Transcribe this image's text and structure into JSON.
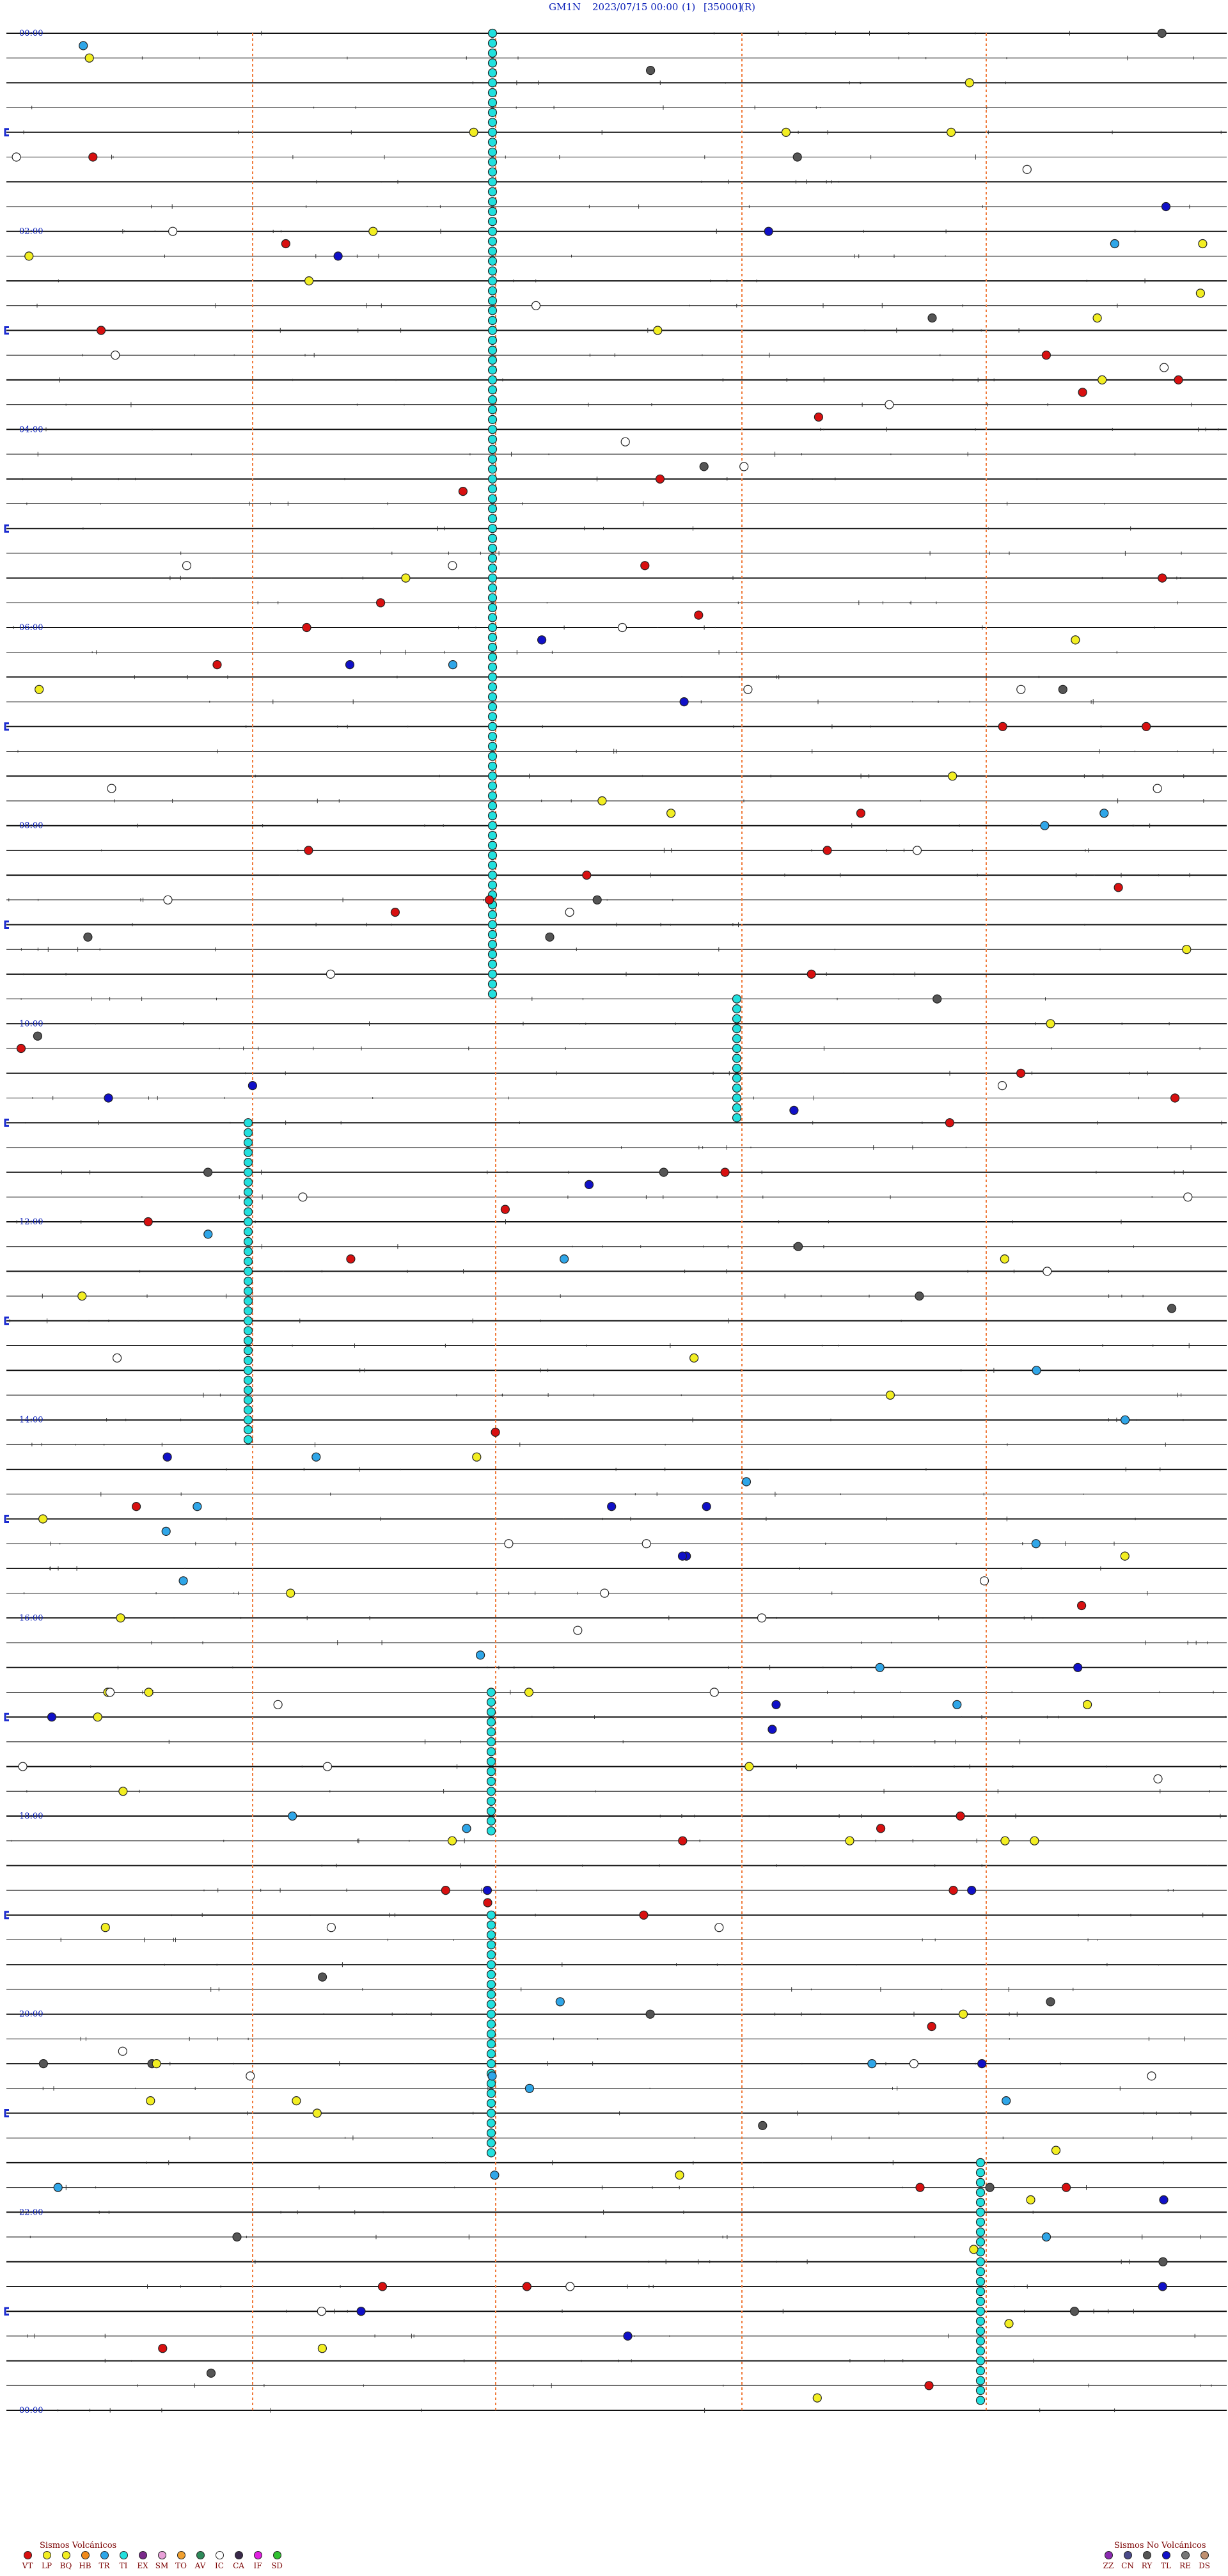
{
  "header": {
    "station": "GM1N",
    "datetime": "2023/07/15 00:00",
    "channel": "(1)",
    "scale": "[35000]",
    "mode": "(R)"
  },
  "time_labels": [
    "00:00",
    "02:00",
    "04:00",
    "06:00",
    "08:00",
    "10:00",
    "12:00",
    "14:00",
    "16:00",
    "18:00",
    "20:00",
    "22:00",
    "00:00"
  ],
  "legend_volcanic": {
    "title": "Sismos Volcánicos",
    "items": [
      {
        "code": "VT",
        "color": "#d81010"
      },
      {
        "code": "LP",
        "color": "#f2ee22"
      },
      {
        "code": "BQ",
        "color": "#f2ee22"
      },
      {
        "code": "HB",
        "color": "#f08a1c"
      },
      {
        "code": "TR",
        "color": "#2fa6e8"
      },
      {
        "code": "TI",
        "color": "#22e0de"
      },
      {
        "code": "EX",
        "color": "#7a2a8a"
      },
      {
        "code": "SM",
        "color": "#e8a0d8"
      },
      {
        "code": "TO",
        "color": "#f0a030"
      },
      {
        "code": "AV",
        "color": "#2e8a5a"
      },
      {
        "code": "IC",
        "color": "#ffffff"
      },
      {
        "code": "CA",
        "color": "#3a2a4a"
      },
      {
        "code": "IF",
        "color": "#e020e0"
      },
      {
        "code": "SD",
        "color": "#30c030"
      }
    ]
  },
  "legend_nonvolcanic": {
    "title": "Sismos No Volcánicos",
    "items": [
      {
        "code": "ZZ",
        "color": "#8a2ab0"
      },
      {
        "code": "CN",
        "color": "#4a4a8a"
      },
      {
        "code": "RY",
        "color": "#555555"
      },
      {
        "code": "TL",
        "color": "#1010c8"
      },
      {
        "code": "RE",
        "color": "#777777"
      },
      {
        "code": "DS",
        "color": "#c09070"
      }
    ]
  }
}
